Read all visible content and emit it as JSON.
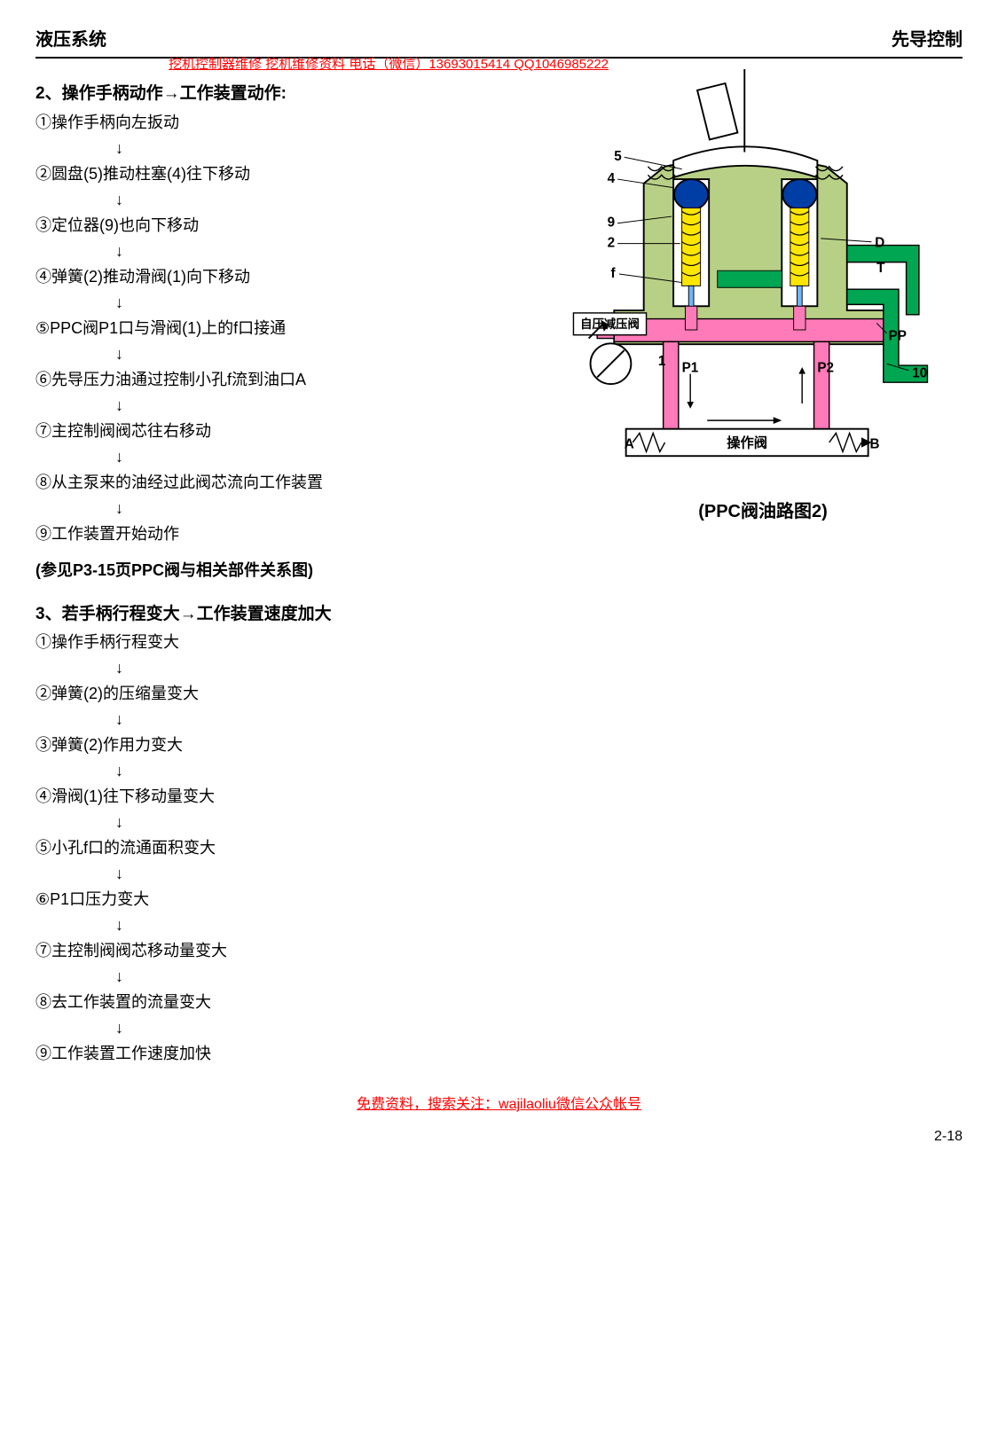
{
  "header": {
    "left": "液压系统",
    "right": "先导控制"
  },
  "watermark_top": "挖机控制器维修 挖机维修资料 电话（微信）13693015414    QQ1046985222",
  "section2": {
    "title": "2、操作手柄动作→工作装置动作:",
    "steps": [
      "①操作手柄向左扳动",
      "②圆盘(5)推动柱塞(4)往下移动",
      "③定位器(9)也向下移动",
      "④弹簧(2)推动滑阀(1)向下移动",
      "⑤PPC阀P1口与滑阀(1)上的f口接通",
      "⑥先导压力油通过控制小孔f流到油口A",
      "⑦主控制阀阀芯往右移动",
      "⑧从主泵来的油经过此阀芯流向工作装置",
      "⑨工作装置开始动作"
    ]
  },
  "ref_note": "(参见P3-15页PPC阀与相关部件关系图)",
  "section3": {
    "title": "3、若手柄行程变大→工作装置速度加大",
    "steps": [
      "①操作手柄行程变大",
      "②弹簧(2)的压缩量变大",
      "③弹簧(2)作用力变大",
      "④滑阀(1)往下移动量变大",
      "⑤小孔f口的流通面积变大",
      "⑥P1口压力变大",
      "⑦主控制阀阀芯移动量变大",
      "⑧去工作装置的流量变大",
      "⑨工作装置工作速度加快"
    ]
  },
  "diagram": {
    "caption": "(PPC阀油路图2)",
    "labels": {
      "n5": "5",
      "n4": "4",
      "n9": "9",
      "n2": "2",
      "nf": "f",
      "n1": "1",
      "D": "D",
      "T": "T",
      "PP": "PP",
      "n10": "10",
      "P1": "P1",
      "P2": "P2",
      "A": "A",
      "B": "B",
      "valve_box": "自压减压阀",
      "op_box": "操作阀"
    },
    "colors": {
      "body": "#b8d085",
      "pink": "#ff7ab8",
      "green": "#00a651",
      "yellow": "#ffe600",
      "blue": "#003da5",
      "lightblue": "#6fb5ff",
      "outline": "#000000",
      "white": "#ffffff"
    }
  },
  "footer_note": "免费资料，搜索关注：wajilaoliu微信公众帐号",
  "page_num": "2-18"
}
